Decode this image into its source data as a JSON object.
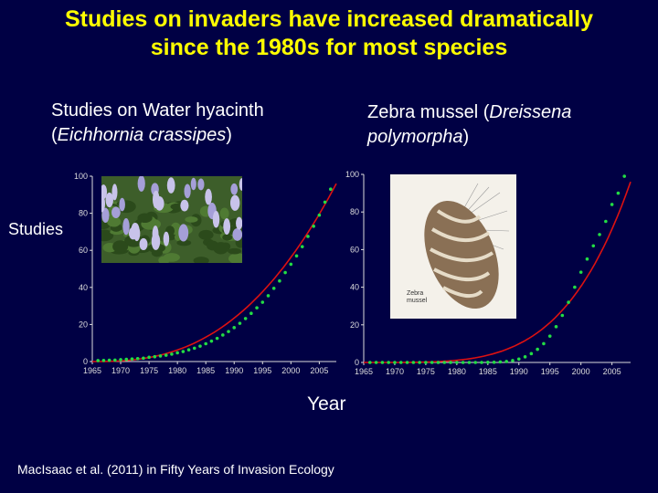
{
  "slide": {
    "title_line1": "Studies on invaders have increased dramatically",
    "title_line2": "since the 1980s for most species",
    "ylabel": "Studies",
    "xlabel": "Year",
    "citation": "MacIsaac et al. (2011) in Fifty Years of Invasion Ecology"
  },
  "colors": {
    "background": "#000044",
    "title": "#ffff00",
    "text": "#ffffff",
    "points": "#22dd44",
    "fit": "#dd1111",
    "axes": "#dddddd"
  },
  "chart_data": [
    {
      "type": "scatter",
      "title_line1": "Studies on Water hyacinth",
      "title_line2": "Eichhornia crassipes",
      "xlim": [
        1965,
        2008
      ],
      "ylim": [
        0,
        100
      ],
      "xticks": [
        "1965",
        "1970",
        "1975",
        "1980",
        "1985",
        "1990",
        "1995",
        "2000",
        "2005"
      ],
      "yticks": [
        "0",
        "20",
        "40",
        "60",
        "80",
        "100"
      ],
      "x": [
        1966,
        1967,
        1968,
        1969,
        1970,
        1971,
        1972,
        1973,
        1974,
        1975,
        1976,
        1977,
        1978,
        1979,
        1980,
        1981,
        1982,
        1983,
        1984,
        1985,
        1986,
        1987,
        1988,
        1989,
        1990,
        1991,
        1992,
        1993,
        1994,
        1995,
        1996,
        1997,
        1998,
        1999,
        2000,
        2001,
        2002,
        2003,
        2004,
        2005,
        2006,
        2007
      ],
      "y": [
        0.5,
        0.6,
        0.7,
        0.8,
        1,
        1.2,
        1.4,
        1.6,
        1.8,
        2.3,
        2.6,
        3,
        3.4,
        4,
        4.7,
        5.4,
        6.3,
        7.2,
        8.3,
        9.6,
        11,
        12.5,
        14.3,
        16.2,
        18.3,
        20.6,
        23.2,
        26,
        29,
        32,
        35.5,
        39.5,
        43.5,
        48,
        52.5,
        57,
        62,
        67.5,
        73,
        79,
        86,
        93
      ],
      "fit": {
        "x0": 1965,
        "x1": 2008,
        "y0": 0,
        "y1": 96
      }
    },
    {
      "type": "scatter",
      "title_line1": "Zebra mussel (Dreissena",
      "title_line2": "polymorpha",
      "xlim": [
        1965,
        2008
      ],
      "ylim": [
        0,
        100
      ],
      "xticks": [
        "1965",
        "1970",
        "1975",
        "1980",
        "1985",
        "1990",
        "1995",
        "2000",
        "2005"
      ],
      "yticks": [
        "0",
        "20",
        "40",
        "60",
        "80",
        "100"
      ],
      "x": [
        1966,
        1967,
        1968,
        1969,
        1970,
        1971,
        1972,
        1973,
        1974,
        1975,
        1976,
        1977,
        1978,
        1979,
        1980,
        1981,
        1982,
        1983,
        1984,
        1985,
        1986,
        1987,
        1988,
        1989,
        1990,
        1991,
        1992,
        1993,
        1994,
        1995,
        1996,
        1997,
        1998,
        1999,
        2000,
        2001,
        2002,
        2003,
        2004,
        2005,
        2006,
        2007
      ],
      "y": [
        0,
        0,
        0,
        0,
        0,
        0,
        0,
        0,
        0,
        0,
        0,
        0,
        0,
        0,
        0,
        0,
        0,
        0,
        0,
        0.1,
        0.1,
        0.3,
        0.5,
        1,
        1.8,
        3,
        4.7,
        7,
        10,
        14,
        19,
        25,
        32,
        40,
        48,
        55,
        62,
        68,
        75,
        84,
        90,
        99
      ],
      "fit": {
        "x0": 1965,
        "x1": 2008,
        "y0": 0,
        "y1": 96
      }
    }
  ],
  "images": {
    "hyacinth_credit": "",
    "mussel_label_line1": "Zebra",
    "mussel_label_line2": "mussel"
  }
}
